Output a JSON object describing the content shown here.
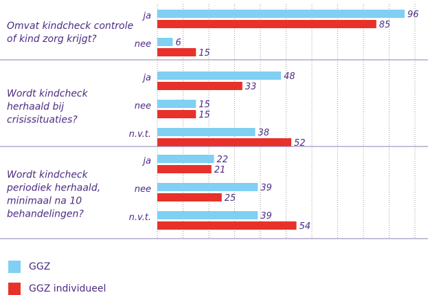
{
  "colors": {
    "ggz": "#7fd0f2",
    "ggz_individueel": "#e8312a",
    "text": "#4b2a82"
  },
  "chart_data": {
    "type": "bar",
    "orientation": "horizontal",
    "xlim": [
      0,
      100
    ],
    "grid": true,
    "legend_position": "bottom-left",
    "legend": [
      "GGZ",
      "GGZ individueel"
    ],
    "groups": [
      {
        "question": [
          "Omvat kindcheck controle",
          "of kind zorg krijgt?"
        ],
        "categories": [
          {
            "label": "ja",
            "values": [
              96,
              85
            ],
            "labels": [
              "96",
              "85"
            ]
          },
          {
            "label": "nee",
            "values": [
              6,
              15
            ],
            "labels": [
              "6",
              "15"
            ]
          }
        ]
      },
      {
        "question": [
          "Wordt kindcheck",
          "herhaald bij",
          "crisissituaties?"
        ],
        "categories": [
          {
            "label": "ja",
            "values": [
              48,
              33
            ],
            "labels": [
              "48",
              "33"
            ]
          },
          {
            "label": "nee",
            "values": [
              15,
              15
            ],
            "labels": [
              "15",
              "15"
            ]
          },
          {
            "label": "n.v.t.",
            "values": [
              38,
              52
            ],
            "labels": [
              "38",
              "52"
            ]
          }
        ]
      },
      {
        "question": [
          "Wordt kindcheck",
          "periodiek herhaald,",
          "minimaal na 10",
          "behandelingen?"
        ],
        "categories": [
          {
            "label": "ja",
            "values": [
              22,
              21
            ],
            "labels": [
              "22",
              "21"
            ]
          },
          {
            "label": "nee",
            "values": [
              39,
              25
            ],
            "labels": [
              "39",
              "25"
            ]
          },
          {
            "label": "n.v.t.",
            "values": [
              39,
              54
            ],
            "labels": [
              "39",
              "54"
            ]
          }
        ]
      }
    ]
  }
}
